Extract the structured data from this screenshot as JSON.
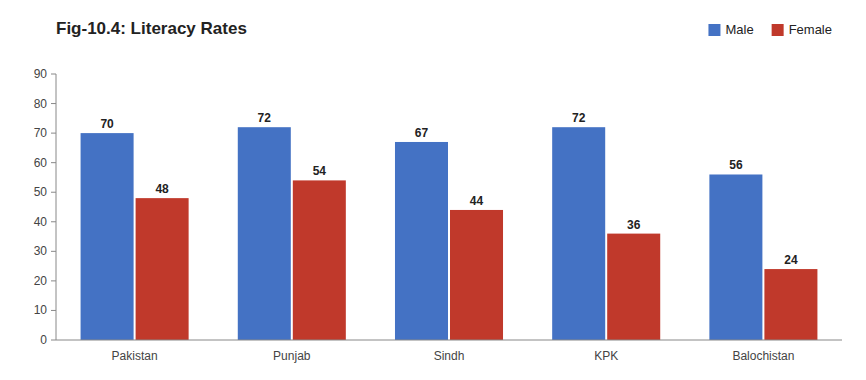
{
  "chart_data": {
    "type": "bar",
    "title": "Fig-10.4: Literacy Rates",
    "categories": [
      "Pakistan",
      "Punjab",
      "Sindh",
      "KPK",
      "Balochistan"
    ],
    "series": [
      {
        "name": "Male",
        "color": "#4472C4",
        "values": [
          70,
          72,
          67,
          72,
          56
        ]
      },
      {
        "name": "Female",
        "color": "#C0392B",
        "values": [
          48,
          54,
          44,
          36,
          24
        ]
      }
    ],
    "ylim": [
      0,
      90
    ],
    "yticks": [
      0,
      10,
      20,
      30,
      40,
      50,
      60,
      70,
      80,
      90
    ],
    "data_labels": true,
    "grid": false,
    "legend": "upper right"
  }
}
